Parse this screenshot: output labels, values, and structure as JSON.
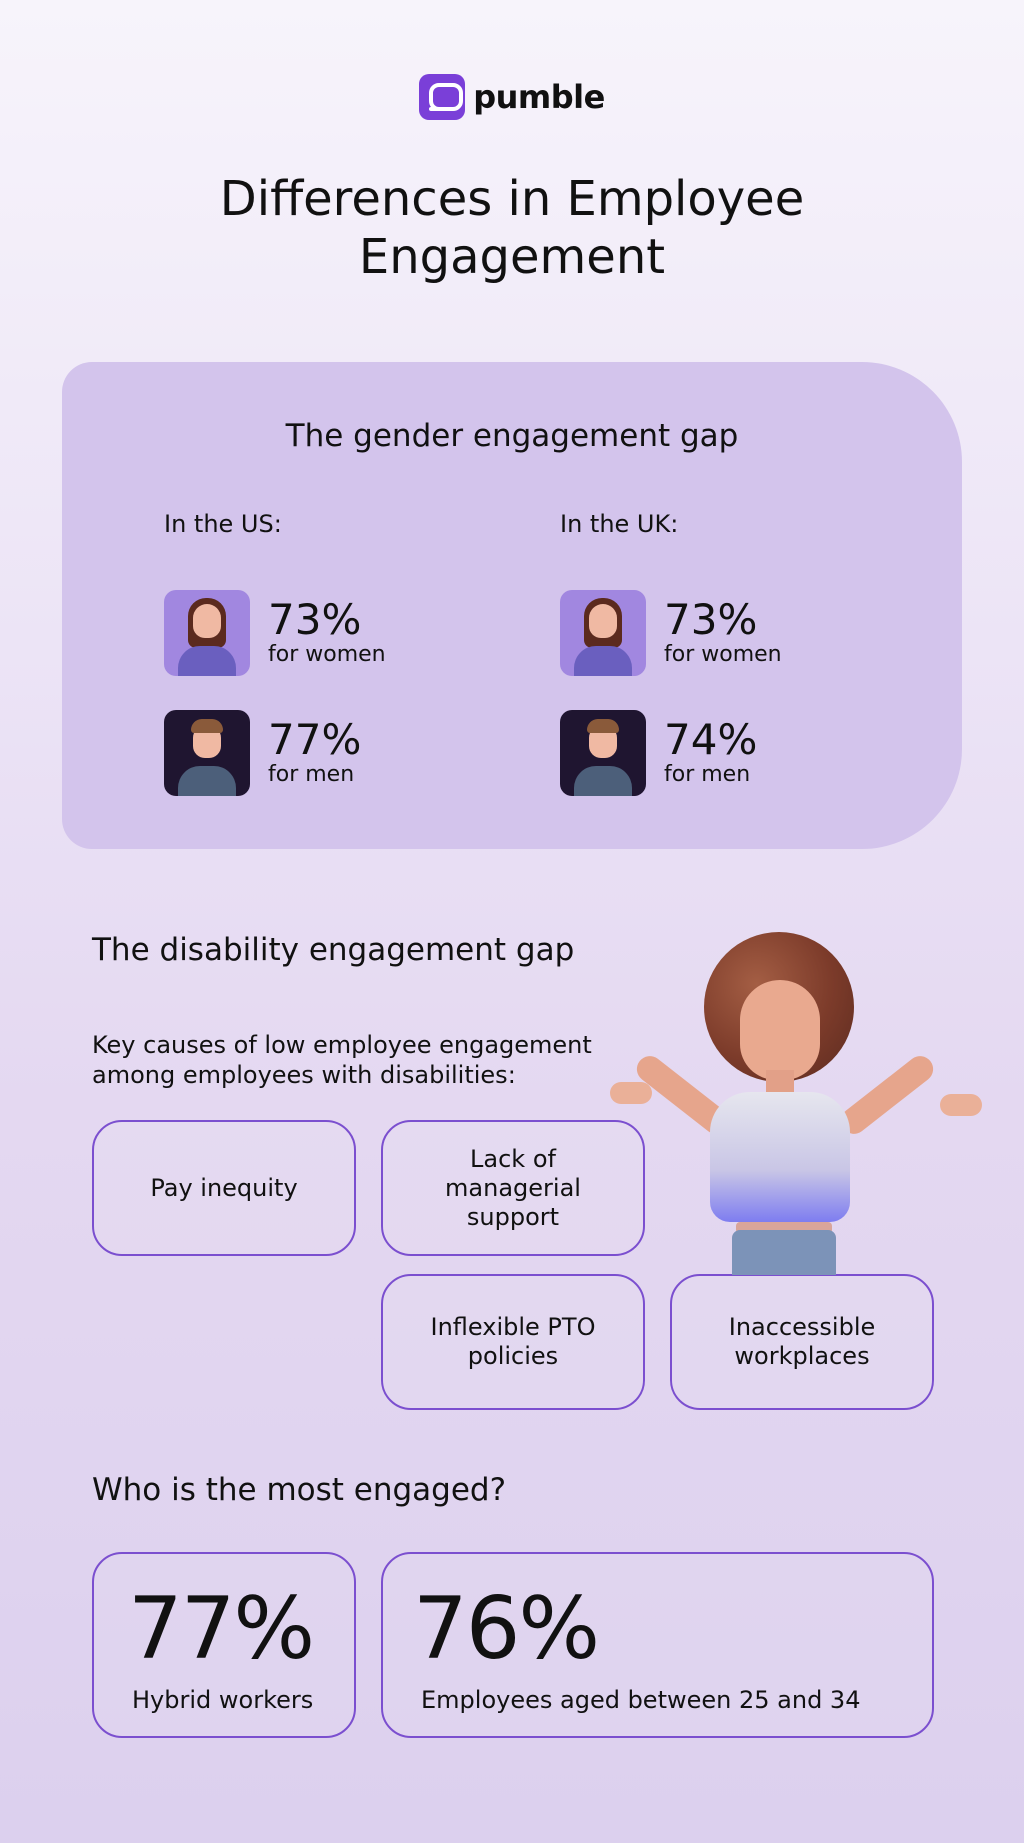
{
  "brand": {
    "name": "pumble",
    "logo_color": "#7a3fd8"
  },
  "title": "Differences in Employee Engagement",
  "gender": {
    "title": "The gender engagement gap",
    "us": {
      "label": "In the US:",
      "women": {
        "value": "73%",
        "label": "for women"
      },
      "men": {
        "value": "77%",
        "label": "for men"
      }
    },
    "uk": {
      "label": "In the UK:",
      "women": {
        "value": "73%",
        "label": "for women"
      },
      "men": {
        "value": "74%",
        "label": "for men"
      }
    }
  },
  "disability": {
    "title": "The disability engagement gap",
    "intro": "Key causes of low employee engagement among employees with disabilities:",
    "causes": [
      "Pay inequity",
      "Lack of managerial support",
      "Inflexible PTO policies",
      "Inaccessible workplaces"
    ]
  },
  "engaged": {
    "title": "Who is the most engaged?",
    "items": [
      {
        "value": "77%",
        "label": "Hybrid workers"
      },
      {
        "value": "76%",
        "label": "Employees aged between 25 and 34"
      }
    ]
  },
  "colors": {
    "card": "#d3c4ec",
    "outline": "#7b4fcf"
  },
  "icons": [
    "woman-avatar-icon",
    "man-avatar-icon",
    "shrugging-woman-illustration"
  ]
}
